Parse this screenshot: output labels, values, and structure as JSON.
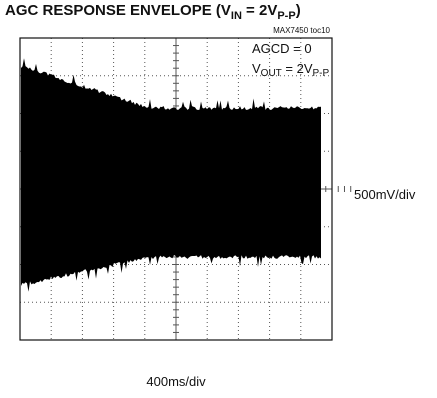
{
  "chart_data": {
    "type": "oscilloscope",
    "title": {
      "prefix": "AGC RESPONSE ENVELOPE (V",
      "sub1": "IN",
      "mid": " = 2V",
      "sub2": "P-P",
      "suffix": ")"
    },
    "figure_id": "MAX7450 toc10",
    "annotations": {
      "agcd": "AGCD = 0",
      "vout_prefix": "V",
      "vout_sub1": "OUT",
      "vout_mid": " = 2V",
      "vout_sub2": "P-P"
    },
    "y_scale_label": "500mV/div",
    "x_scale_label": "400ms/div"
  }
}
